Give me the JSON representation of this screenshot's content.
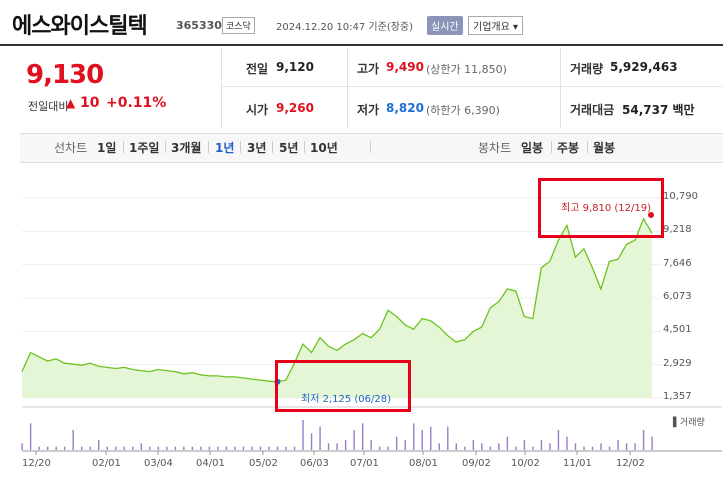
{
  "header": {
    "title": "에스와이스틸텍",
    "code": "365330",
    "market": "코스닥",
    "datetime": "2024.12.20 10:47 기준(장중)",
    "realtime_label": "실시간",
    "company_label": "기업개요 ▾"
  },
  "quote": {
    "price": "9,130",
    "change_label": "전일대비",
    "change_arrow": "▲",
    "change_value": "10",
    "change_pct": "+0.11%"
  },
  "stats": {
    "prev_label": "전일",
    "prev_value": "9,120",
    "high_label": "고가",
    "high_value": "9,490",
    "upper_limit": "(상한가 11,850)",
    "volume_label": "거래량",
    "volume_value": "5,929,463",
    "open_label": "시가",
    "open_value": "9,260",
    "low_label": "저가",
    "low_value": "8,820",
    "lower_limit": "(하한가 6,390)",
    "amount_label": "거래대금",
    "amount_value": "54,737 백만"
  },
  "tabs": {
    "line_head": "선차트",
    "line_items": [
      "1일",
      "1주일",
      "3개월",
      "1년",
      "3년",
      "5년",
      "10년"
    ],
    "active": "1년",
    "candle_head": "봉차트",
    "candle_items": [
      "일봉",
      "주봉",
      "월봉"
    ]
  },
  "colors": {
    "accent_red": "#e0101e",
    "accent_blue": "#1f6ed4",
    "line_green": "#6cc31f",
    "fill_green": "#e5f6d6"
  },
  "chart_data": {
    "type": "area",
    "y_ticks": [
      "10,790",
      "9,218",
      "7,646",
      "6,073",
      "4,501",
      "2,929",
      "1,357"
    ],
    "ylim": [
      1357,
      10790
    ],
    "x_ticks": [
      "12/20",
      "02/01",
      "03/04",
      "04/01",
      "05/02",
      "06/03",
      "07/01",
      "08/01",
      "09/02",
      "10/02",
      "11/01",
      "12/02"
    ],
    "series": [
      {
        "values": [
          2600,
          3500,
          3300,
          3100,
          3200,
          3000,
          2950,
          2900,
          3000,
          2850,
          2800,
          2750,
          2800,
          2700,
          2650,
          2600,
          2700,
          2650,
          2600,
          2500,
          2550,
          2450,
          2400,
          2400,
          2350,
          2350,
          2300,
          2250,
          2200,
          2150,
          2125,
          2200,
          3000,
          3900,
          3500,
          4200,
          3800,
          3600,
          3900,
          4100,
          4400,
          4200,
          4600,
          5500,
          5200,
          4800,
          4600,
          5100,
          5000,
          4700,
          4300,
          4000,
          4100,
          4500,
          4700,
          5600,
          5900,
          6500,
          6400,
          5200,
          5100,
          7500,
          7800,
          8800,
          9500,
          8000,
          8400,
          7500,
          6500,
          7800,
          7900,
          8600,
          8800,
          9810,
          9130
        ]
      }
    ],
    "volume": [
      2,
      8,
      1,
      1,
      1,
      1,
      6,
      1,
      1,
      3,
      1,
      1,
      1,
      1,
      2,
      1,
      1,
      1,
      1,
      1,
      1,
      1,
      1,
      1,
      1,
      1,
      1,
      1,
      1,
      1,
      1,
      1,
      1,
      9,
      5,
      7,
      2,
      2,
      3,
      6,
      8,
      3,
      1,
      1,
      4,
      3,
      8,
      6,
      7,
      2,
      7,
      2,
      1,
      3,
      2,
      1,
      2,
      4,
      1,
      3,
      1,
      3,
      2,
      6,
      4,
      2,
      1,
      1,
      2,
      1,
      3,
      2,
      2,
      6,
      4
    ],
    "high_annotation": "최고 9,810 (12/19)",
    "low_annotation": "최저 2,125 (06/28)",
    "volume_label": "▌거래량"
  }
}
